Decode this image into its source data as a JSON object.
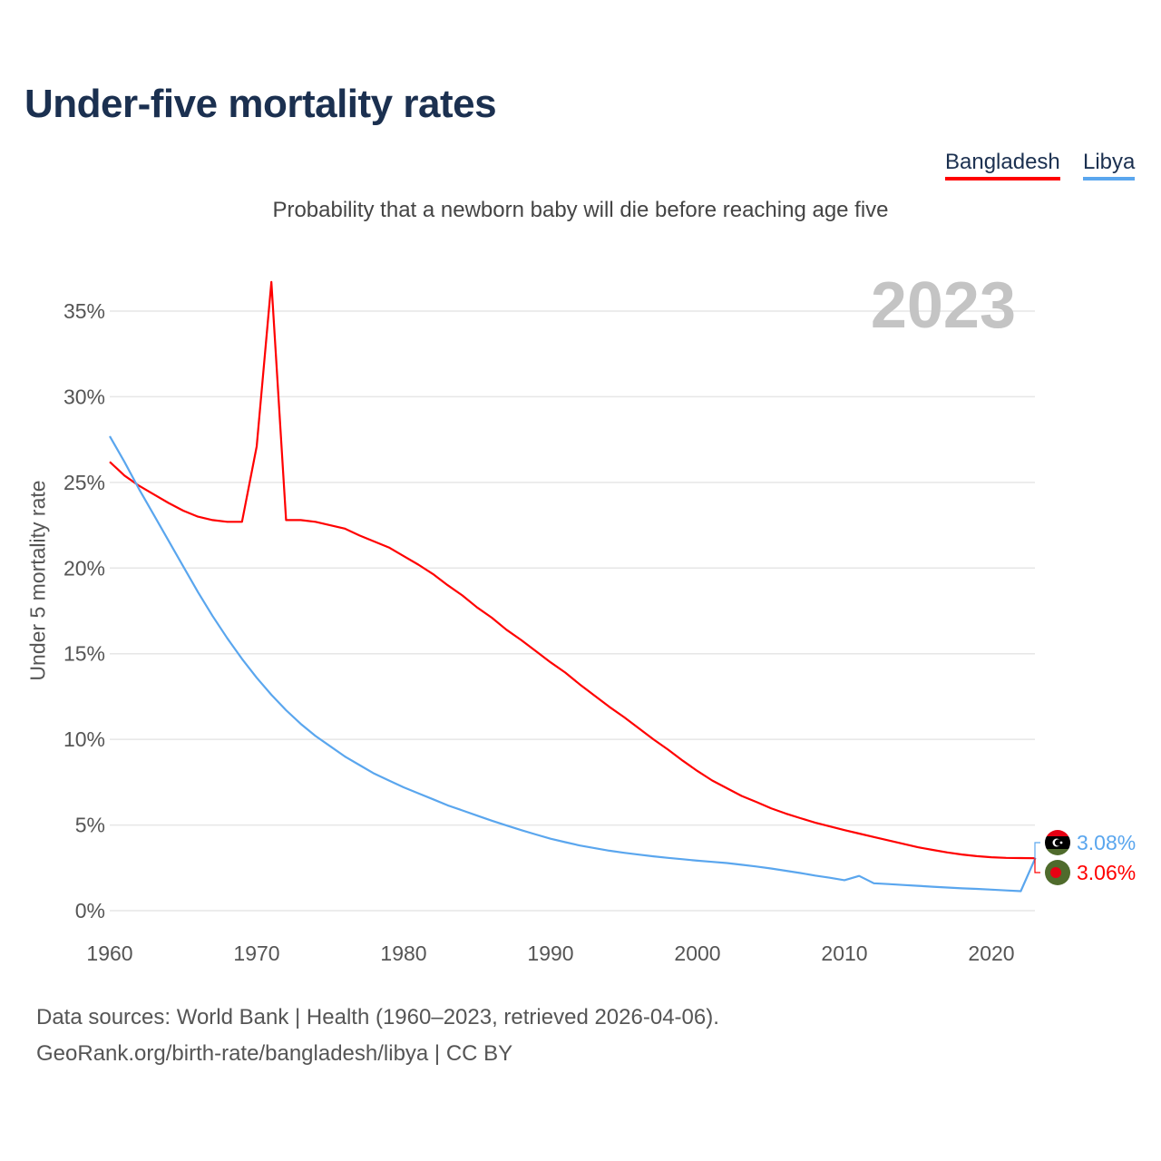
{
  "title": "Under-five mortality rates",
  "subtitle": "Probability that a newborn baby will die before reaching age five",
  "year_watermark": "2023",
  "legend": [
    {
      "label": "Bangladesh",
      "color": "#ff0000"
    },
    {
      "label": "Libya",
      "color": "#5aa6ee"
    }
  ],
  "footer": {
    "line1": "Data sources: World Bank | Health (1960–2023, retrieved 2026-04-06).",
    "line2": "GeoRank.org/birth-rate/bangladesh/libya | CC BY"
  },
  "chart_data": {
    "type": "line",
    "title": "Under-five mortality rates",
    "xlabel": "",
    "ylabel": "Under 5 mortality rate",
    "xlim": [
      1960,
      2023
    ],
    "ylim": [
      0,
      37
    ],
    "x_ticks": [
      1960,
      1970,
      1980,
      1990,
      2000,
      2010,
      2020
    ],
    "x_tick_labels": [
      "1960",
      "1970",
      "1980",
      "1990",
      "2000",
      "2010",
      "2020"
    ],
    "y_ticks": [
      0,
      5,
      10,
      15,
      20,
      25,
      30,
      35
    ],
    "y_tick_labels": [
      "0%",
      "5%",
      "10%",
      "15%",
      "20%",
      "25%",
      "30%",
      "35%"
    ],
    "grid": true,
    "legend_position": "top-right",
    "x_start": 1960,
    "series": [
      {
        "name": "Bangladesh",
        "color": "#ff0000",
        "end_label": "3.06%",
        "flag": "bangladesh-flag",
        "values": [
          26.2,
          25.4,
          24.8,
          24.3,
          23.8,
          23.35,
          23.0,
          22.8,
          22.7,
          22.7,
          27.1,
          36.7,
          22.8,
          22.8,
          22.7,
          22.5,
          22.3,
          21.9,
          21.55,
          21.2,
          20.7,
          20.2,
          19.65,
          19.0,
          18.4,
          17.7,
          17.1,
          16.4,
          15.8,
          15.15,
          14.5,
          13.9,
          13.2,
          12.55,
          11.9,
          11.3,
          10.65,
          10.0,
          9.4,
          8.75,
          8.15,
          7.6,
          7.15,
          6.7,
          6.35,
          5.98,
          5.67,
          5.4,
          5.14,
          4.92,
          4.7,
          4.5,
          4.3,
          4.1,
          3.9,
          3.7,
          3.55,
          3.4,
          3.28,
          3.18,
          3.12,
          3.08,
          3.07,
          3.06
        ]
      },
      {
        "name": "Libya",
        "color": "#5aa6ee",
        "end_label": "3.08%",
        "flag": "libya-flag",
        "values": [
          27.7,
          26.2,
          24.6,
          23.1,
          21.6,
          20.1,
          18.6,
          17.2,
          15.9,
          14.7,
          13.6,
          12.6,
          11.7,
          10.9,
          10.2,
          9.6,
          9.0,
          8.5,
          8.0,
          7.6,
          7.2,
          6.85,
          6.5,
          6.15,
          5.85,
          5.55,
          5.25,
          4.97,
          4.7,
          4.45,
          4.2,
          4.0,
          3.8,
          3.65,
          3.5,
          3.38,
          3.27,
          3.17,
          3.08,
          3.0,
          2.92,
          2.85,
          2.78,
          2.68,
          2.58,
          2.46,
          2.33,
          2.2,
          2.05,
          1.92,
          1.78,
          2.03,
          1.6,
          1.55,
          1.5,
          1.45,
          1.4,
          1.35,
          1.3,
          1.27,
          1.23,
          1.18,
          1.14,
          3.08
        ]
      }
    ]
  }
}
